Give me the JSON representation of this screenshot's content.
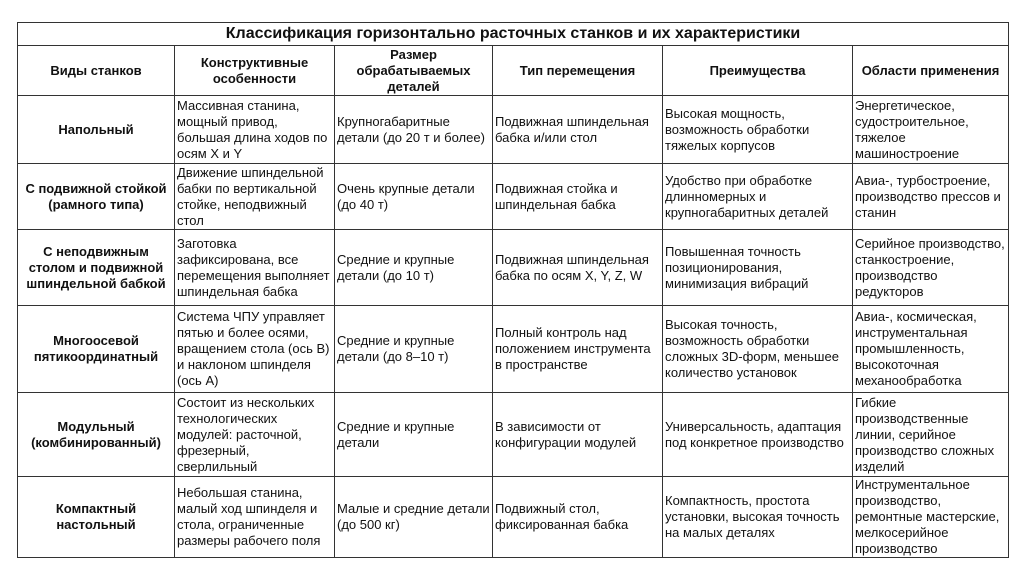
{
  "title": "Классификация горизонтально расточных станков и их характеристики",
  "headers": [
    "Виды станков",
    "Конструктивные особенности",
    "Размер обрабатываемых деталей",
    "Тип перемещения",
    "Преимущества",
    "Области применения"
  ],
  "rows": [
    [
      "Напольный",
      "Массивная станина, мощный привод, большая длина ходов по осям X и Y",
      "Крупногабаритные детали (до 20 т и более)",
      "Подвижная шпиндельная бабка и/или стол",
      "Высокая мощность, возможность обработки тяжелых корпусов",
      "Энергетическое, судостроительное, тяжелое машиностроение"
    ],
    [
      "С подвижной стойкой (рамного типа)",
      "Движение шпиндельной бабки по вертикальной стойке, неподвижный стол",
      "Очень крупные детали (до 40 т)",
      "Подвижная стойка и шпиндельная бабка",
      "Удобство при обработке длинномерных и крупногабаритных деталей",
      "Авиа-, турбостроение, производство прессов и станин"
    ],
    [
      "С неподвижным столом и подвижной шпиндельной бабкой",
      "Заготовка зафиксирована, все перемещения выполняет шпиндельная бабка",
      "Средние и крупные детали (до 10 т)",
      "Подвижная шпиндельная бабка по осям X, Y, Z, W",
      "Повышенная точность позиционирования, минимизация вибраций",
      "Серийное производство, станкостроение, производство редукторов"
    ],
    [
      "Многоосевой пятикоординатный",
      "Система ЧПУ управляет пятью и более осями, вращением стола (ось B) и наклоном шпинделя (ось A)",
      "Средние и крупные детали (до 8–10 т)",
      "Полный контроль над положением инструмента в пространстве",
      "Высокая точность, возможность обработки сложных 3D-форм, меньшее количество установок",
      "Авиа-, космическая, инструментальная промышленность, высокоточная механообработка"
    ],
    [
      "Модульный (комбинированный)",
      "Состоит из нескольких технологических модулей: расточной, фрезерный, сверлильный",
      "Средние и крупные детали",
      "В зависимости от конфигурации модулей",
      "Универсальность, адаптация под конкретное производство",
      "Гибкие производственные линии, серийное производство сложных изделий"
    ],
    [
      "Компактный настольный",
      "Небольшая станина, малый ход шпинделя и стола, ограниченные размеры рабочего поля",
      "Малые и средние детали (до 500 кг)",
      "Подвижный стол, фиксированная бабка",
      "Компактность, простота установки, высокая точность на малых деталях",
      "Инструментальное производство, ремонтные мастерские, мелкосерийное производство"
    ]
  ]
}
